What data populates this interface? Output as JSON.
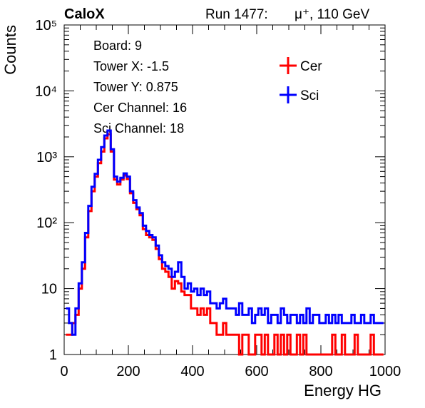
{
  "header": {
    "brand": "CaloX",
    "run": "Run 1477:",
    "beam": "μ⁺, 110 GeV"
  },
  "info_box": {
    "lines": [
      "Board: 9",
      "Tower X: -1.5",
      "Tower Y: 0.875",
      "Cer Channel: 16",
      "Sci Channel: 18"
    ]
  },
  "chart_data": {
    "type": "line",
    "title": "",
    "xlabel": "Energy HG",
    "ylabel": "Counts",
    "xlim": [
      0,
      1000
    ],
    "ylim": [
      1,
      100000
    ],
    "yscale": "log",
    "xticks": [
      0,
      200,
      400,
      600,
      800,
      1000
    ],
    "xtick_labels": [
      "0",
      "200",
      "400",
      "600",
      "800",
      "1000"
    ],
    "yticks": [
      1,
      10,
      100,
      1000,
      10000,
      100000
    ],
    "ytick_labels": [
      "1",
      "10",
      "10²",
      "10³",
      "10⁴",
      "10⁵"
    ],
    "legend": {
      "placement": "top-right"
    },
    "series": [
      {
        "name": "Cer",
        "color": "#ff0000",
        "x": [
          10,
          20,
          30,
          40,
          50,
          60,
          70,
          80,
          90,
          100,
          110,
          120,
          130,
          140,
          150,
          160,
          170,
          180,
          190,
          200,
          210,
          220,
          230,
          240,
          250,
          260,
          270,
          280,
          290,
          300,
          310,
          320,
          330,
          340,
          350,
          360,
          370,
          380,
          390,
          400,
          410,
          420,
          430,
          440,
          450,
          460,
          470,
          480,
          490,
          500,
          510,
          520,
          530,
          540,
          550,
          560,
          570,
          580,
          590,
          600,
          610,
          620,
          630,
          640,
          650,
          660,
          670,
          680,
          690,
          700,
          710,
          720,
          730,
          740,
          750,
          760,
          770,
          780,
          790,
          800,
          810,
          820,
          830,
          840,
          850,
          860,
          870,
          880,
          890,
          900,
          910,
          920,
          930,
          940,
          950,
          960,
          970,
          980,
          990
        ],
        "values": [
          2,
          2,
          3,
          4,
          10,
          20,
          60,
          150,
          300,
          500,
          800,
          1200,
          1900,
          2200,
          1200,
          450,
          380,
          450,
          520,
          460,
          280,
          200,
          160,
          130,
          80,
          65,
          60,
          55,
          40,
          28,
          20,
          18,
          15,
          10,
          13,
          12,
          9,
          8,
          8,
          5,
          5,
          4,
          5,
          4,
          5,
          3,
          3,
          2,
          2,
          3,
          2,
          2,
          2,
          2,
          1,
          2,
          2,
          1,
          1,
          2,
          2,
          1,
          2,
          1,
          1,
          2,
          1,
          2,
          1,
          2,
          1,
          1,
          2,
          1,
          2,
          1,
          1,
          1,
          1,
          1,
          1,
          1,
          1,
          2,
          1,
          1,
          2,
          1,
          1,
          1,
          2,
          1,
          1,
          1,
          1,
          2,
          1,
          1,
          1
        ]
      },
      {
        "name": "Sci",
        "color": "#0000ff",
        "x": [
          10,
          20,
          30,
          40,
          50,
          60,
          70,
          80,
          90,
          100,
          110,
          120,
          130,
          140,
          150,
          160,
          170,
          180,
          190,
          200,
          210,
          220,
          230,
          240,
          250,
          260,
          270,
          280,
          290,
          300,
          310,
          320,
          330,
          340,
          350,
          360,
          370,
          380,
          390,
          400,
          410,
          420,
          430,
          440,
          450,
          460,
          470,
          480,
          490,
          500,
          510,
          520,
          530,
          540,
          550,
          560,
          570,
          580,
          590,
          600,
          610,
          620,
          630,
          640,
          650,
          660,
          670,
          680,
          690,
          700,
          710,
          720,
          730,
          740,
          750,
          760,
          770,
          780,
          790,
          800,
          810,
          820,
          830,
          840,
          850,
          860,
          870,
          880,
          890,
          900,
          910,
          920,
          930,
          940,
          950,
          960,
          970,
          980,
          990
        ],
        "values": [
          5,
          3,
          2,
          5,
          12,
          25,
          70,
          180,
          350,
          550,
          900,
          1400,
          2100,
          2500,
          1300,
          500,
          420,
          480,
          560,
          500,
          300,
          220,
          170,
          140,
          90,
          75,
          65,
          60,
          45,
          32,
          25,
          22,
          20,
          15,
          18,
          25,
          15,
          10,
          12,
          9,
          10,
          8,
          10,
          8,
          9,
          6,
          6,
          5,
          6,
          7,
          5,
          5,
          5,
          4,
          6,
          4,
          4,
          5,
          3,
          4,
          5,
          4,
          5,
          3,
          4,
          4,
          3,
          5,
          4,
          3,
          4,
          4,
          3,
          4,
          3,
          5,
          3,
          4,
          4,
          3,
          3,
          4,
          3,
          4,
          3,
          4,
          3,
          3,
          3,
          4,
          3,
          3,
          4,
          3,
          3,
          4,
          3,
          3,
          3
        ]
      }
    ]
  }
}
